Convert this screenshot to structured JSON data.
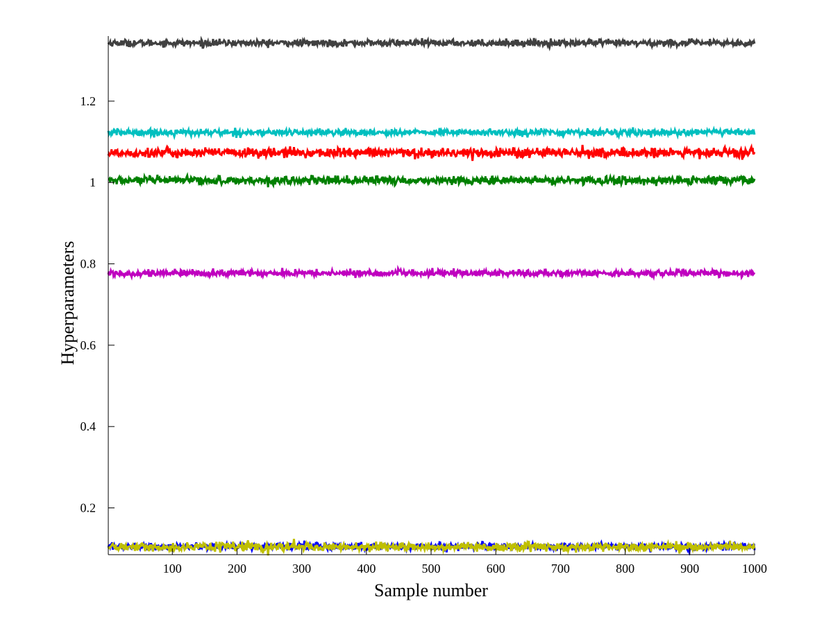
{
  "chart_data": {
    "type": "line",
    "title": "",
    "xlabel": "Sample number",
    "ylabel": "Hyperparameters",
    "xlim": [
      1,
      1000
    ],
    "ylim": [
      0.085,
      1.36
    ],
    "xticks": [
      100,
      200,
      300,
      400,
      500,
      600,
      700,
      800,
      900,
      1000
    ],
    "xtick_labels": [
      "100",
      "200",
      "300",
      "400",
      "500",
      "600",
      "700",
      "800",
      "900",
      "1000"
    ],
    "yticks": [
      0.2,
      0.4,
      0.6,
      0.8,
      1.0,
      1.2
    ],
    "ytick_labels": [
      "0.2",
      "0.4",
      "0.6",
      "0.8",
      "1",
      "1.2"
    ],
    "grid": false,
    "legend": "none",
    "n_samples": 1000,
    "series": [
      {
        "color": "#404040",
        "mean": 1.343,
        "spread": 0.004
      },
      {
        "color": "#00bfbf",
        "mean": 1.123,
        "spread": 0.004
      },
      {
        "color": "#ff0000",
        "mean": 1.073,
        "spread": 0.006
      },
      {
        "color": "#008000",
        "mean": 1.005,
        "spread": 0.005
      },
      {
        "color": "#bf00bf",
        "mean": 0.777,
        "spread": 0.004
      },
      {
        "color": "#0000ff",
        "mean": 0.105,
        "spread": 0.004
      },
      {
        "color": "#bfbf00",
        "mean": 0.104,
        "spread": 0.005
      }
    ]
  }
}
